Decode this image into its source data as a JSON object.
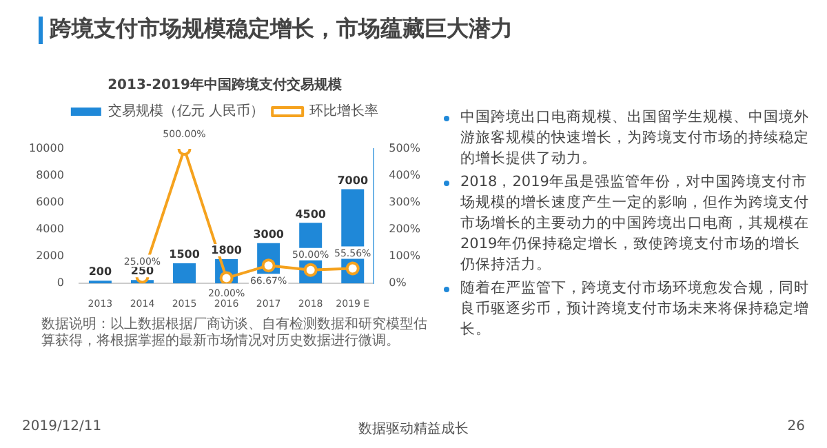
{
  "chart_data": {
    "type": "bar",
    "title": "跨境支付市场规模稳定增长，市场蕴藏巨大潜力",
    "subtitle": "2013-2019年中国跨境支付交易规模",
    "categories": [
      "2013",
      "2014",
      "2015",
      "2016",
      "2017",
      "2018",
      "2019 E"
    ],
    "series": [
      {
        "name": "交易规模（亿元 人民币）",
        "color": "#1f88d8",
        "values": [
          200,
          250,
          1500,
          1800,
          3000,
          4500,
          7000
        ],
        "value_labels": [
          "200",
          "250",
          "1500",
          "1800",
          "3000",
          "4500",
          "7000"
        ]
      },
      {
        "name": "环比增长率",
        "type": "line",
        "axis": "y2",
        "color": "#f5a21e",
        "values": [
          null,
          25,
          500,
          20,
          66.67,
          50,
          55.56
        ],
        "value_labels": [
          null,
          "25.00%",
          "500.00%",
          "20.00%",
          "66.67%",
          "50.00%",
          "55.56%"
        ]
      }
    ],
    "ylim": [
      0,
      10000
    ],
    "yticks": [
      0,
      2000,
      4000,
      6000,
      8000,
      10000
    ],
    "y2lim": [
      0,
      500
    ],
    "y2ticks": [
      {
        "value": 0,
        "label": "0%"
      },
      {
        "value": 100,
        "label": "100%"
      },
      {
        "value": 200,
        "label": "200%"
      },
      {
        "value": 300,
        "label": "300%"
      },
      {
        "value": 400,
        "label": "400%"
      },
      {
        "value": 500,
        "label": "500%"
      }
    ],
    "legend": "top",
    "marker": "circle",
    "line_style": "solid",
    "annotations": [
      "数据说明：以上数据根据厂商访谈、自有检测数据和研究模型估算获得，将根据掌握的最新市场情况对历史数据进行微调。",
      "中国跨境出口电商规模、出国留学生规模、中国境外游旅客规模的快速增长，为跨境支付市场的持续稳定的增长提供了动力。",
      "2018，2019年虽是强监管年份，对中国跨境支付市场规模的增长速度产生一定的影响，但作为跨境支付市场增长的主要动力的中国跨境出口电商，其规模在2019年仍保持稳定增长，致使跨境支付市场的增长仍保持活力。",
      "随着在严监管下，跨境支付市场环境愈发合规，同时良币驱逐劣币，预计跨境支付市场未来将保持稳定增长。",
      "2019/12/11",
      "数据驱动精益成长",
      "26"
    ]
  }
}
